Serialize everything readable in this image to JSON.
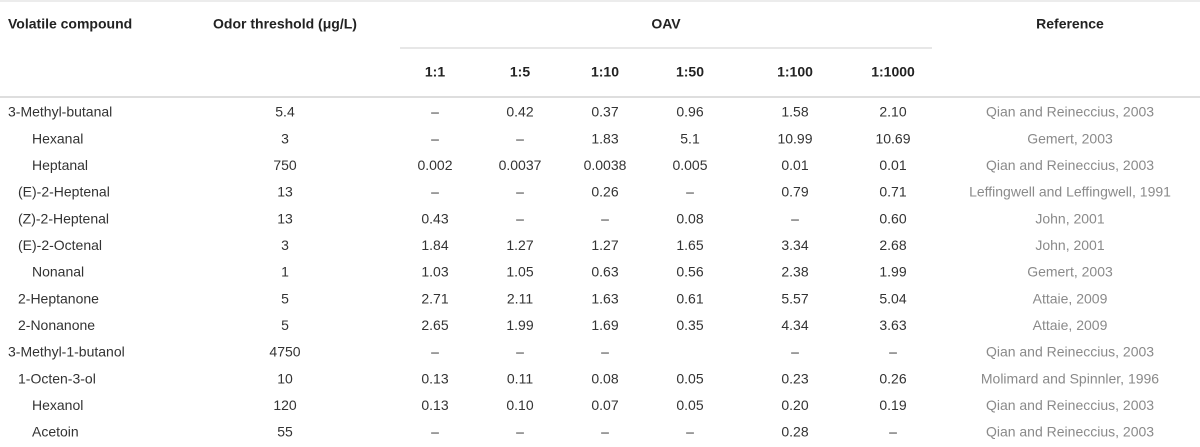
{
  "table": {
    "header": [
      "Volatile compound",
      "Odor threshold (μg/L)",
      "OAV",
      "Reference"
    ],
    "subheader": [
      "1:1",
      "1:5",
      "1:10",
      "1:50",
      "1:100",
      "1:1000"
    ],
    "rows": [
      [
        "3-Methyl-butanal",
        "5.4",
        "–",
        "0.42",
        "0.37",
        "0.96",
        "1.58",
        "2.10",
        "Qian and Reineccius, 2003"
      ],
      [
        "Hexanal",
        "3",
        "–",
        "–",
        "1.83",
        "5.1",
        "10.99",
        "10.69",
        "Gemert, 2003"
      ],
      [
        "Heptanal",
        "750",
        "0.002",
        "0.0037",
        "0.0038",
        "0.005",
        "0.01",
        "0.01",
        "Qian and Reineccius, 2003"
      ],
      [
        "(E)-2-Heptenal",
        "13",
        "–",
        "–",
        "0.26",
        "–",
        "0.79",
        "0.71",
        "Leffingwell and Leffingwell, 1991"
      ],
      [
        "(Z)-2-Heptenal",
        "13",
        "0.43",
        "–",
        "–",
        "0.08",
        "–",
        "0.60",
        "John, 2001"
      ],
      [
        "(E)-2-Octenal",
        "3",
        "1.84",
        "1.27",
        "1.27",
        "1.65",
        "3.34",
        "2.68",
        "John, 2001"
      ],
      [
        "Nonanal",
        "1",
        "1.03",
        "1.05",
        "0.63",
        "0.56",
        "2.38",
        "1.99",
        "Gemert, 2003"
      ],
      [
        "2-Heptanone",
        "5",
        "2.71",
        "2.11",
        "1.63",
        "0.61",
        "5.57",
        "5.04",
        "Attaie, 2009"
      ],
      [
        "2-Nonanone",
        "5",
        "2.65",
        "1.99",
        "1.69",
        "0.35",
        "4.34",
        "3.63",
        "Attaie, 2009"
      ],
      [
        "3-Methyl-1-butanol",
        "4750",
        "–",
        "–",
        "–",
        null,
        "–",
        "–",
        "Qian and Reineccius, 2003"
      ],
      [
        "1-Octen-3-ol",
        "10",
        "0.13",
        "0.11",
        "0.08",
        "0.05",
        "0.23",
        "0.26",
        "Molimard and Spinnler, 1996"
      ],
      [
        "Hexanol",
        "120",
        "0.13",
        "0.10",
        "0.07",
        "0.05",
        "0.20",
        "0.19",
        "Qian and Reineccius, 2003"
      ],
      [
        "Acetoin",
        "55",
        "–",
        "–",
        "–",
        "–",
        "0.28",
        "–",
        "Qian and Reineccius, 2003"
      ]
    ]
  }
}
